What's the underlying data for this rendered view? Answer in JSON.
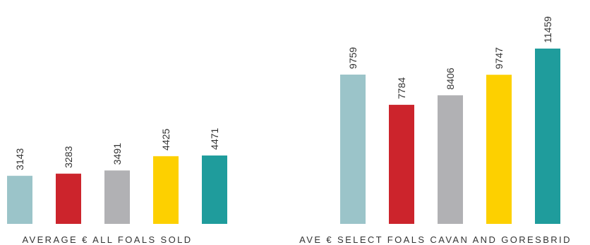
{
  "chart_data": [
    {
      "type": "bar",
      "title": "AVERAGE € ALL FOALS SOLD",
      "values": [
        3143,
        3283,
        3491,
        4425,
        4471
      ],
      "colors": [
        "#9bc4c9",
        "#cc242c",
        "#b1b1b4",
        "#fdd000",
        "#1f9c9c"
      ],
      "data_labels": true,
      "grid": false
    },
    {
      "type": "bar",
      "title": "AVE € SELECT FOALS CAVAN AND GORESBRID",
      "values": [
        9759,
        7784,
        8406,
        9747,
        11459
      ],
      "colors": [
        "#9bc4c9",
        "#cc242c",
        "#b1b1b4",
        "#fdd000",
        "#1f9c9c"
      ],
      "data_labels": true,
      "grid": false
    }
  ]
}
